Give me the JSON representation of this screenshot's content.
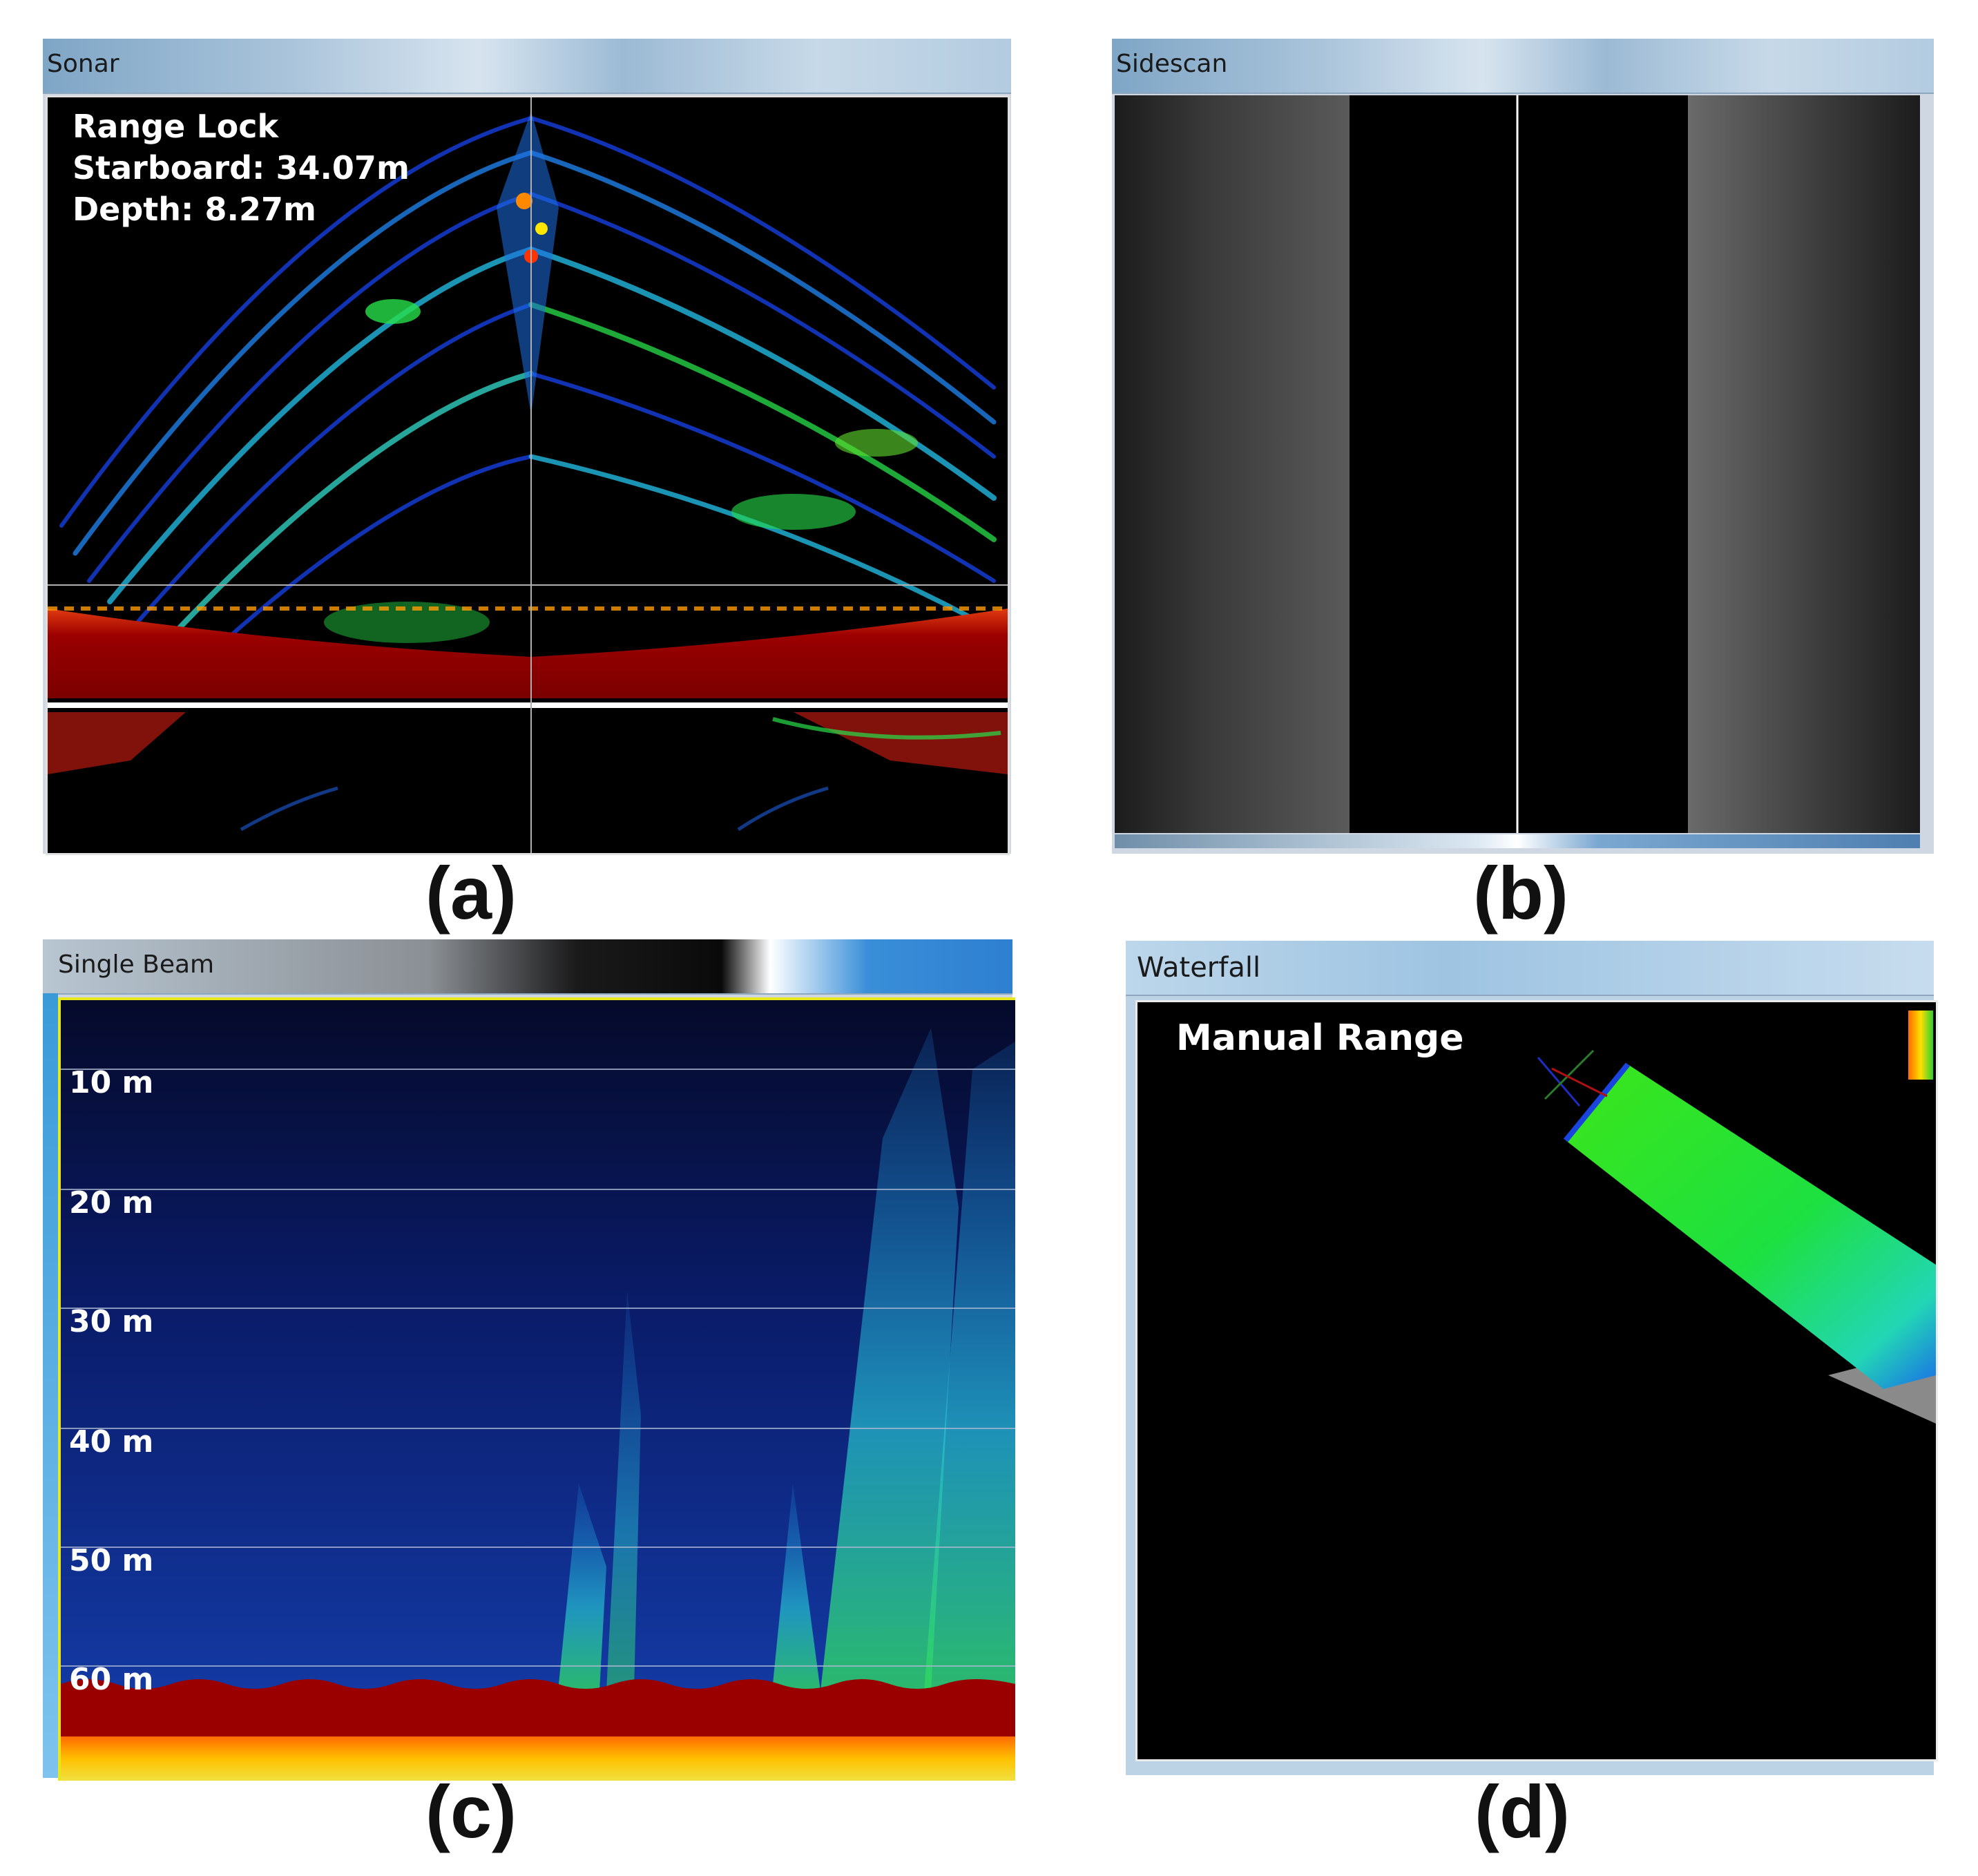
{
  "panels": {
    "a": {
      "title": "Sonar",
      "caption": "(a)",
      "overlay": {
        "line1": "Range Lock",
        "line2": "Starboard: 34.07m",
        "line3": "Depth:  8.27m"
      }
    },
    "b": {
      "title": "Sidescan",
      "caption": "(b)"
    },
    "c": {
      "title": "Single Beam",
      "caption": "(c)",
      "depth_labels": [
        "10 m",
        "20 m",
        "30 m",
        "40 m",
        "50 m",
        "60 m"
      ]
    },
    "d": {
      "title": "Waterfall",
      "caption": "(d)",
      "overlay": "Manual Range"
    }
  },
  "colors": {
    "sonar_red": "#9b0000",
    "echo_blue": "#1a5fe0",
    "echo_green": "#27e04a",
    "titlebar": "#a9c3da"
  }
}
